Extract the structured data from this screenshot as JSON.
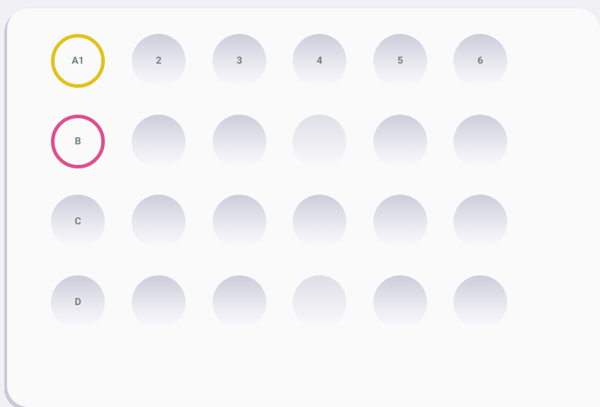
{
  "plate": {
    "column_labels": [
      "A1",
      "2",
      "3",
      "4",
      "5",
      "6"
    ],
    "row_labels": [
      "B",
      "C",
      "D"
    ]
  }
}
